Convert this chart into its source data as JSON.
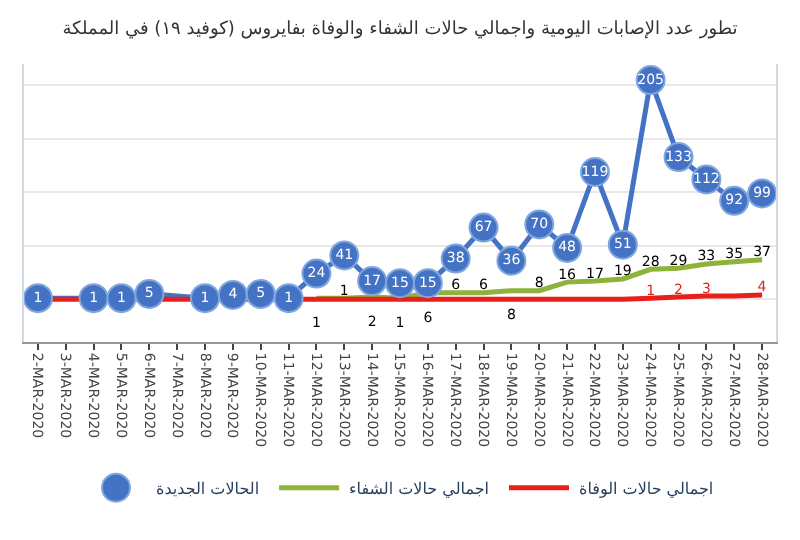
{
  "chart_data": {
    "type": "line",
    "title": "تطور عدد الإصابات اليومية واجمالي حالات الشفاء والوفاة بفايروس (كوفيد ١٩) في المملكة",
    "categories": [
      "2-MAR-2020",
      "3-MAR-2020",
      "4-MAR-2020",
      "5-MAR-2020",
      "6-MAR-2020",
      "7-MAR-2020",
      "8-MAR-2020",
      "9-MAR-2020",
      "10-MAR-2020",
      "11-MAR-2020",
      "12-MAR-2020",
      "13-MAR-2020",
      "14-MAR-2020",
      "15-MAR-2020",
      "16-MAR-2020",
      "17-MAR-2020",
      "18-MAR-2020",
      "19-MAR-2020",
      "20-MAR-2020",
      "21-MAR-2020",
      "22-MAR-2020",
      "23-MAR-2020",
      "24-MAR-2020",
      "25-MAR-2020",
      "26-MAR-2020",
      "27-MAR-2020",
      "28-MAR-2020"
    ],
    "series": [
      {
        "name": "الحالات الجديدة",
        "color": "#4472c4",
        "marker": "circle",
        "values": [
          1,
          null,
          1,
          1,
          5,
          null,
          1,
          4,
          5,
          1,
          24,
          41,
          17,
          15,
          15,
          38,
          67,
          36,
          70,
          48,
          119,
          51,
          205,
          133,
          112,
          92,
          99
        ],
        "value_labels": [
          "1",
          null,
          "1",
          "1",
          "5",
          null,
          "1",
          "4",
          "5",
          "1",
          "24",
          "41",
          "17",
          "15",
          "15",
          "38",
          "67",
          "36",
          "70",
          "48",
          "119",
          "51",
          "205",
          "133",
          "112",
          "92",
          "99"
        ]
      },
      {
        "name": "اجمالي حالات الشفاء",
        "color": "#8db33a",
        "marker": "none",
        "values": [
          null,
          null,
          null,
          null,
          null,
          null,
          null,
          null,
          null,
          null,
          1,
          1,
          2,
          1,
          6,
          6,
          6,
          8,
          8,
          16,
          17,
          19,
          28,
          29,
          33,
          35,
          37
        ],
        "value_labels": [
          null,
          null,
          null,
          null,
          null,
          null,
          null,
          null,
          null,
          null,
          "1",
          "1",
          "2",
          "1",
          "6",
          "6",
          "6",
          "8",
          "8",
          "16",
          "17",
          "19",
          "28",
          "29",
          "33",
          "35",
          "37"
        ]
      },
      {
        "name": "اجمالي حالات الوفاة",
        "color": "#e8201c",
        "marker": "none",
        "values": [
          0,
          0,
          0,
          0,
          0,
          0,
          0,
          0,
          0,
          0,
          0,
          0,
          0,
          0,
          0,
          0,
          0,
          0,
          0,
          0,
          0,
          0,
          1,
          2,
          3,
          3,
          4
        ],
        "value_labels": [
          null,
          null,
          null,
          null,
          null,
          null,
          null,
          null,
          null,
          null,
          null,
          null,
          null,
          null,
          null,
          null,
          null,
          null,
          null,
          null,
          null,
          null,
          "1",
          "2",
          "3",
          null,
          "4"
        ]
      }
    ],
    "ylim": [
      -40,
      220
    ],
    "yticks": [
      {
        "value": 0,
        "label": null
      },
      {
        "value": 50,
        "label": null
      },
      {
        "value": 100,
        "label": null
      },
      {
        "value": 150,
        "label": null
      },
      {
        "value": 200,
        "label": null
      }
    ],
    "tick_labels": "x",
    "grid": "y",
    "legend": "bottom"
  }
}
